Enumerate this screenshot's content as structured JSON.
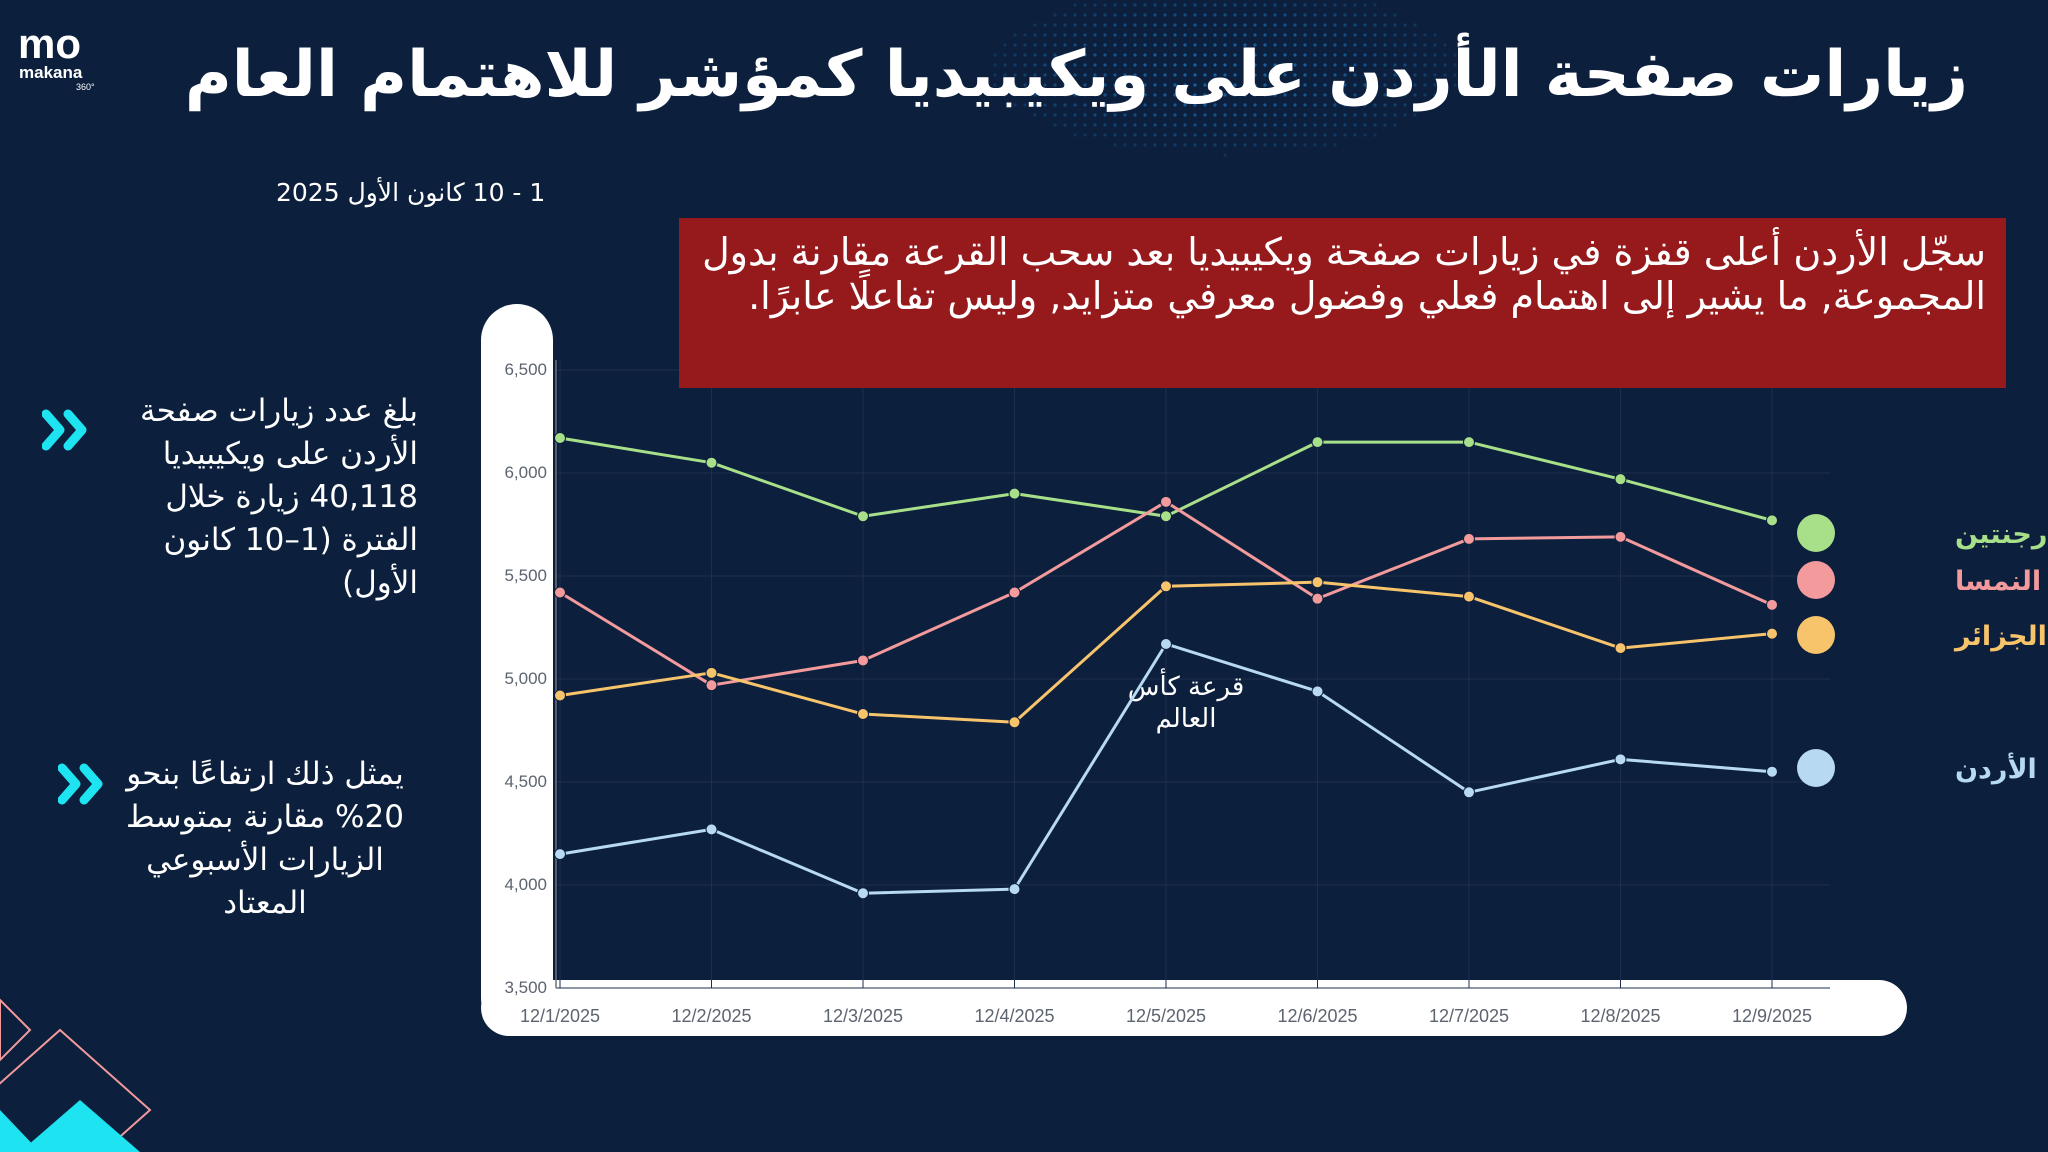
{
  "brand": {
    "name": "makana",
    "badge": "360°",
    "mark": "mo"
  },
  "title": "زيارات صفحة الأردن على ويكيبيديا كمؤشر للاهتمام العام",
  "date_range": "1 - 10 كانون الأول 2025",
  "callout": "سجّل الأردن أعلى قفزة في زيارات صفحة ويكيبيديا بعد سحب القرعة مقارنة بدول المجموعة, ما يشير إلى اهتمام فعلي وفضول معرفي متزايد, وليس تفاعلًا عابرًا.",
  "stats": [
    "بلغ عدد زيارات صفحة الأردن على ويكيبيديا 40,118 زيارة خلال الفترة (1–10 كانون الأول)",
    "يمثل ذلك ارتفاعًا بنحو 20% مقارنة بمتوسط الزيارات الأسبوعي المعتاد"
  ],
  "colors": {
    "background": "#0c1f3d",
    "callout": "#96191c",
    "accent": "#1ee3f0",
    "argentina": "#a8e08a",
    "austria": "#f29a9c",
    "algeria": "#f7c46c",
    "jordan": "#b8d9f2"
  },
  "chart_data": {
    "type": "line",
    "categories": [
      "12/1/2025",
      "12/2/2025",
      "12/3/2025",
      "12/4/2025",
      "12/5/2025",
      "12/6/2025",
      "12/7/2025",
      "12/8/2025",
      "12/9/2025"
    ],
    "yticks": [
      "3,500",
      "4,000",
      "4,500",
      "5,000",
      "5,500",
      "6,000",
      "6,500"
    ],
    "ylim": [
      3500,
      6500
    ],
    "grid": true,
    "legend_position": "right",
    "annotation": {
      "text": "قرعة كأس العالم",
      "x": "12/5/2025"
    },
    "series": [
      {
        "name": "الأرجنتين",
        "color": "#a8e08a",
        "values": [
          6170,
          6050,
          5790,
          5900,
          5790,
          6150,
          6150,
          5970,
          5770
        ]
      },
      {
        "name": "النمسا",
        "color": "#f29a9c",
        "values": [
          5420,
          4970,
          5090,
          5420,
          5860,
          5390,
          5680,
          5690,
          5360
        ]
      },
      {
        "name": "الجزائر",
        "color": "#f7c46c",
        "values": [
          4920,
          5030,
          4830,
          4790,
          5450,
          5470,
          5400,
          5150,
          5220
        ]
      },
      {
        "name": "الأردن",
        "color": "#b8d9f2",
        "values": [
          4150,
          4270,
          3960,
          3980,
          5170,
          4940,
          4450,
          4610,
          4550
        ]
      }
    ]
  }
}
